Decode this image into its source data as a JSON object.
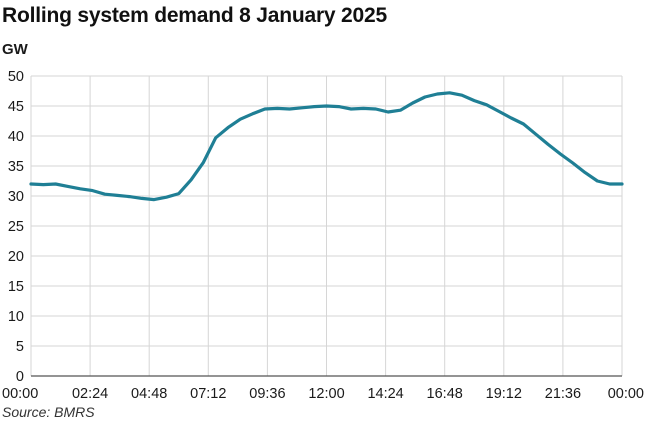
{
  "chart_data": {
    "type": "line",
    "title": "Rolling system demand 8 January 2025",
    "ylabel": "GW",
    "xlabel": "",
    "source": "Source: BMRS",
    "ylim": [
      0,
      50
    ],
    "xlim_hours": [
      0,
      24
    ],
    "grid": true,
    "legend": "none",
    "line_color": "#1f7f95",
    "grid_color": "#d6d6d6",
    "y_ticks": [
      "0",
      "5",
      "10",
      "15",
      "20",
      "25",
      "30",
      "35",
      "40",
      "45",
      "50"
    ],
    "x_ticks": [
      "00:00",
      "02:24",
      "04:48",
      "07:12",
      "09:36",
      "12:00",
      "14:24",
      "16:48",
      "19:12",
      "21:36",
      "00:00"
    ],
    "series": [
      {
        "x": [
          "00:00",
          "00:30",
          "01:00",
          "01:30",
          "02:00",
          "02:30",
          "03:00",
          "03:30",
          "04:00",
          "04:30",
          "05:00",
          "05:30",
          "06:00",
          "06:30",
          "07:00",
          "07:30",
          "08:00",
          "08:30",
          "09:00",
          "09:30",
          "10:00",
          "10:30",
          "11:00",
          "11:30",
          "12:00",
          "12:30",
          "13:00",
          "13:30",
          "14:00",
          "14:30",
          "15:00",
          "15:30",
          "16:00",
          "16:30",
          "17:00",
          "17:30",
          "18:00",
          "18:30",
          "19:00",
          "19:30",
          "20:00",
          "20:30",
          "21:00",
          "21:30",
          "22:00",
          "22:30",
          "23:00",
          "23:30",
          "00:00"
        ],
        "values": [
          32.0,
          31.9,
          32.0,
          31.6,
          31.2,
          30.9,
          30.3,
          30.1,
          29.9,
          29.6,
          29.4,
          29.8,
          30.4,
          32.7,
          35.6,
          39.7,
          41.4,
          42.8,
          43.7,
          44.5,
          44.6,
          44.5,
          44.7,
          44.9,
          45.0,
          44.9,
          44.5,
          44.6,
          44.5,
          44.0,
          44.3,
          45.5,
          46.5,
          47.0,
          47.2,
          46.8,
          45.9,
          45.2,
          44.1,
          43.0,
          42.0,
          40.3,
          38.6,
          37.0,
          35.5,
          33.9,
          32.5,
          32.0,
          32.0
        ]
      }
    ]
  }
}
